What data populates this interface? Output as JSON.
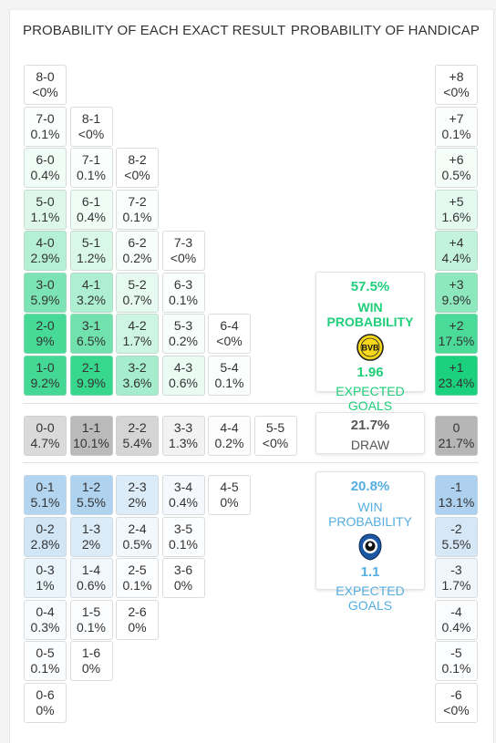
{
  "headers": {
    "left": "PROBABILITY OF EACH EXACT RESULT",
    "right": "PROBABILITY OF HANDICAP"
  },
  "home_cells": [
    {
      "score": "8-0",
      "pct": "<0%"
    },
    {
      "score": "7-0",
      "pct": "0.1%"
    },
    {
      "score": "8-1",
      "pct": "<0%"
    },
    {
      "score": "6-0",
      "pct": "0.4%"
    },
    {
      "score": "7-1",
      "pct": "0.1%"
    },
    {
      "score": "8-2",
      "pct": "<0%"
    },
    {
      "score": "5-0",
      "pct": "1.1%"
    },
    {
      "score": "6-1",
      "pct": "0.4%"
    },
    {
      "score": "7-2",
      "pct": "0.1%"
    },
    {
      "score": "4-0",
      "pct": "2.9%"
    },
    {
      "score": "5-1",
      "pct": "1.2%"
    },
    {
      "score": "6-2",
      "pct": "0.2%"
    },
    {
      "score": "7-3",
      "pct": "<0%"
    },
    {
      "score": "3-0",
      "pct": "5.9%"
    },
    {
      "score": "4-1",
      "pct": "3.2%"
    },
    {
      "score": "5-2",
      "pct": "0.7%"
    },
    {
      "score": "6-3",
      "pct": "0.1%"
    },
    {
      "score": "2-0",
      "pct": "9%"
    },
    {
      "score": "3-1",
      "pct": "6.5%"
    },
    {
      "score": "4-2",
      "pct": "1.7%"
    },
    {
      "score": "5-3",
      "pct": "0.2%"
    },
    {
      "score": "6-4",
      "pct": "<0%"
    },
    {
      "score": "1-0",
      "pct": "9.2%"
    },
    {
      "score": "2-1",
      "pct": "9.9%"
    },
    {
      "score": "3-2",
      "pct": "3.6%"
    },
    {
      "score": "4-3",
      "pct": "0.6%"
    },
    {
      "score": "5-4",
      "pct": "0.1%"
    }
  ],
  "draw_cells": [
    {
      "score": "0-0",
      "pct": "4.7%"
    },
    {
      "score": "1-1",
      "pct": "10.1%"
    },
    {
      "score": "2-2",
      "pct": "5.4%"
    },
    {
      "score": "3-3",
      "pct": "1.3%"
    },
    {
      "score": "4-4",
      "pct": "0.2%"
    },
    {
      "score": "5-5",
      "pct": "<0%"
    }
  ],
  "away_cells": [
    {
      "score": "0-1",
      "pct": "5.1%"
    },
    {
      "score": "1-2",
      "pct": "5.5%"
    },
    {
      "score": "2-3",
      "pct": "2%"
    },
    {
      "score": "3-4",
      "pct": "0.4%"
    },
    {
      "score": "4-5",
      "pct": "0%"
    },
    {
      "score": "0-2",
      "pct": "2.8%"
    },
    {
      "score": "1-3",
      "pct": "2%"
    },
    {
      "score": "2-4",
      "pct": "0.5%"
    },
    {
      "score": "3-5",
      "pct": "0.1%"
    },
    {
      "score": "0-3",
      "pct": "1%"
    },
    {
      "score": "1-4",
      "pct": "0.6%"
    },
    {
      "score": "2-5",
      "pct": "0.1%"
    },
    {
      "score": "3-6",
      "pct": "0%"
    },
    {
      "score": "0-4",
      "pct": "0.3%"
    },
    {
      "score": "1-5",
      "pct": "0.1%"
    },
    {
      "score": "2-6",
      "pct": "0%"
    },
    {
      "score": "0-5",
      "pct": "0.1%"
    },
    {
      "score": "1-6",
      "pct": "0%"
    },
    {
      "score": "0-6",
      "pct": "0%"
    }
  ],
  "handicap": [
    {
      "label": "+8",
      "pct": "<0%"
    },
    {
      "label": "+7",
      "pct": "0.1%"
    },
    {
      "label": "+6",
      "pct": "0.5%"
    },
    {
      "label": "+5",
      "pct": "1.6%"
    },
    {
      "label": "+4",
      "pct": "4.4%"
    },
    {
      "label": "+3",
      "pct": "9.9%"
    },
    {
      "label": "+2",
      "pct": "17.5%"
    },
    {
      "label": "+1",
      "pct": "23.4%"
    },
    {
      "label": "0",
      "pct": "21.7%"
    },
    {
      "label": "-1",
      "pct": "13.1%"
    },
    {
      "label": "-2",
      "pct": "5.5%"
    },
    {
      "label": "-3",
      "pct": "1.7%"
    },
    {
      "label": "-4",
      "pct": "0.4%"
    },
    {
      "label": "-5",
      "pct": "0.1%"
    },
    {
      "label": "-6",
      "pct": "<0%"
    }
  ],
  "home_card": {
    "win_pct": "57.5%",
    "win_label": "WIN PROBABILITY",
    "expected_goals": "1.96",
    "goals_label": "EXPECTED GOALS",
    "logo_text": "BVB",
    "logo_icon": "bvb-crest-icon"
  },
  "draw_card": {
    "pct": "21.7%",
    "label": "DRAW"
  },
  "away_card": {
    "win_pct": "20.8%",
    "win_label": "WIN PROBABILITY",
    "expected_goals": "1.1",
    "goals_label": "EXPECTED GOALS",
    "logo_icon": "atalanta-crest-icon"
  },
  "colors": {
    "home_accent": "#1fce7a",
    "away_accent": "#55aee0",
    "draw_text": "#555555",
    "home_scale": "#17d07b",
    "away_scale": "#a9cfee",
    "draw_scale": "#b5b5b5"
  }
}
